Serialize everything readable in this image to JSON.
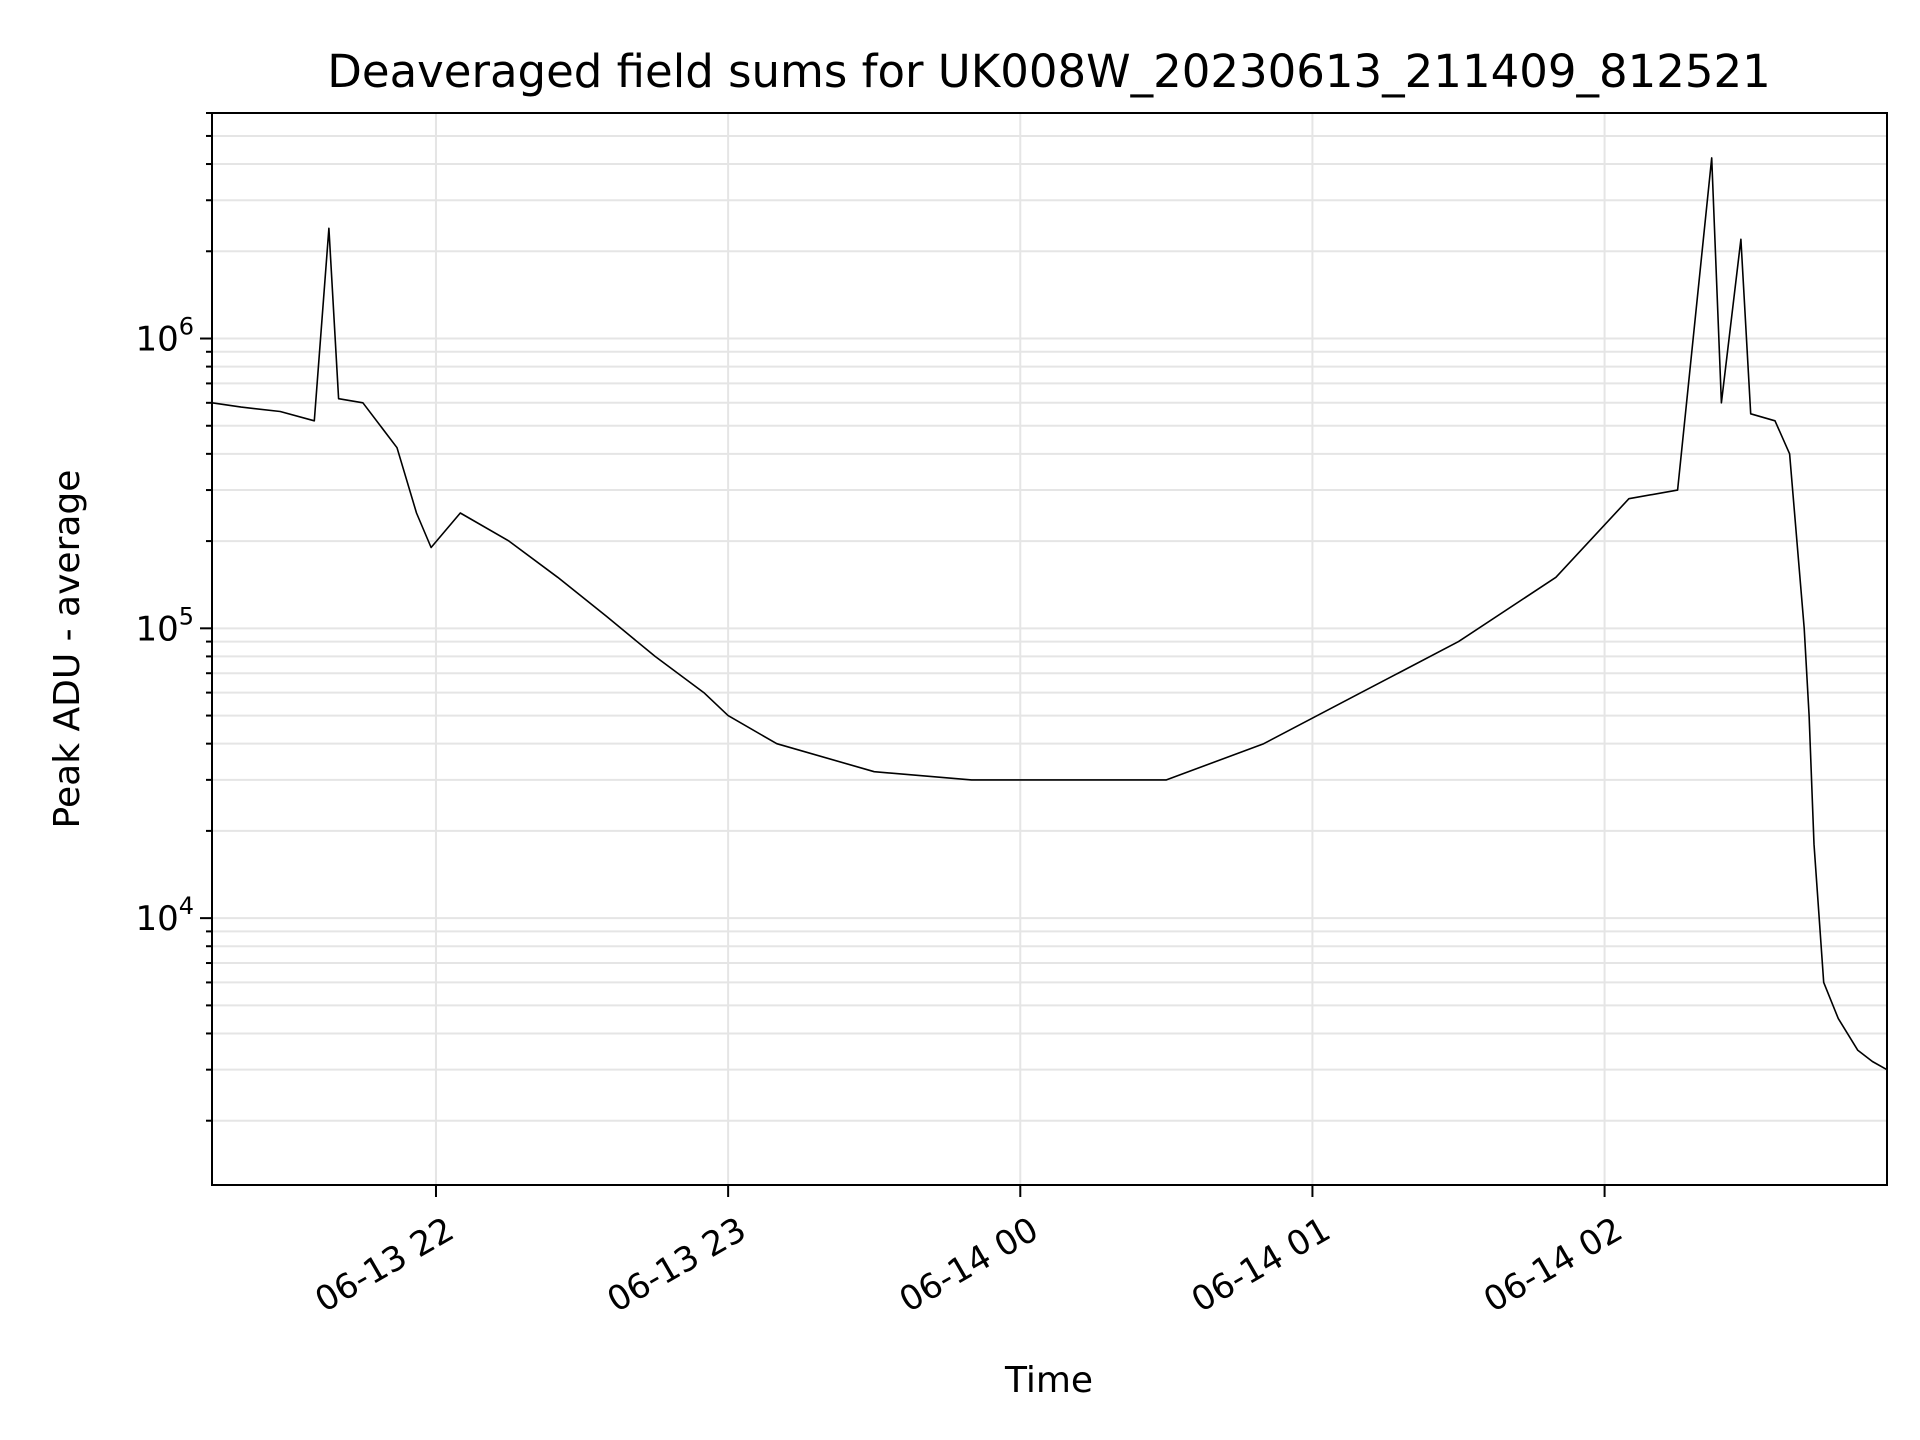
{
  "chart_data": {
    "type": "line",
    "title": "Deaveraged field sums for UK008W_20230613_211409_812521",
    "xlabel": "Time",
    "ylabel": "Peak ADU - average",
    "y_scale": "log",
    "ylim": [
      1200,
      6000000
    ],
    "x_range": [
      "06-13 21:14",
      "06-14 02:58"
    ],
    "grid": true,
    "line_color": "#000000",
    "grid_color": "#e5e5e5",
    "x_ticks": [
      {
        "label": "06-13 22",
        "time": "06-13 22:00"
      },
      {
        "label": "06-13 23",
        "time": "06-13 23:00"
      },
      {
        "label": "06-14 00",
        "time": "06-14 00:00"
      },
      {
        "label": "06-14 01",
        "time": "06-14 01:00"
      },
      {
        "label": "06-14 02",
        "time": "06-14 02:00"
      }
    ],
    "y_ticks": [
      {
        "base": "10",
        "exp": "4",
        "value": 10000
      },
      {
        "base": "10",
        "exp": "5",
        "value": 100000
      },
      {
        "base": "10",
        "exp": "6",
        "value": 1000000
      }
    ],
    "series": [
      {
        "points": [
          [
            "06-13 21:14",
            600000
          ],
          [
            "06-13 21:20",
            580000
          ],
          [
            "06-13 21:28",
            560000
          ],
          [
            "06-13 21:35",
            520000
          ],
          [
            "06-13 21:38",
            2400000
          ],
          [
            "06-13 21:40",
            620000
          ],
          [
            "06-13 21:45",
            600000
          ],
          [
            "06-13 21:52",
            420000
          ],
          [
            "06-13 21:56",
            250000
          ],
          [
            "06-13 21:59",
            190000
          ],
          [
            "06-13 22:05",
            250000
          ],
          [
            "06-13 22:15",
            200000
          ],
          [
            "06-13 22:25",
            150000
          ],
          [
            "06-13 22:35",
            110000
          ],
          [
            "06-13 22:45",
            80000
          ],
          [
            "06-13 22:55",
            60000
          ],
          [
            "06-13 23:00",
            50000
          ],
          [
            "06-13 23:10",
            40000
          ],
          [
            "06-13 23:30",
            32000
          ],
          [
            "06-13 23:50",
            30000
          ],
          [
            "06-14 00:10",
            30000
          ],
          [
            "06-14 00:30",
            30000
          ],
          [
            "06-14 00:50",
            40000
          ],
          [
            "06-14 01:10",
            60000
          ],
          [
            "06-14 01:30",
            90000
          ],
          [
            "06-14 01:50",
            150000
          ],
          [
            "06-14 02:05",
            280000
          ],
          [
            "06-14 02:15",
            300000
          ],
          [
            "06-14 02:22",
            4200000
          ],
          [
            "06-14 02:24",
            600000
          ],
          [
            "06-14 02:28",
            2200000
          ],
          [
            "06-14 02:30",
            550000
          ],
          [
            "06-14 02:35",
            520000
          ],
          [
            "06-14 02:38",
            400000
          ],
          [
            "06-14 02:41",
            100000
          ],
          [
            "06-14 02:42",
            50000
          ],
          [
            "06-14 02:43",
            18000
          ],
          [
            "06-14 02:45",
            6000
          ],
          [
            "06-14 02:48",
            4500
          ],
          [
            "06-14 02:52",
            3500
          ],
          [
            "06-14 02:55",
            3200
          ],
          [
            "06-14 02:58",
            3000
          ]
        ]
      }
    ]
  }
}
